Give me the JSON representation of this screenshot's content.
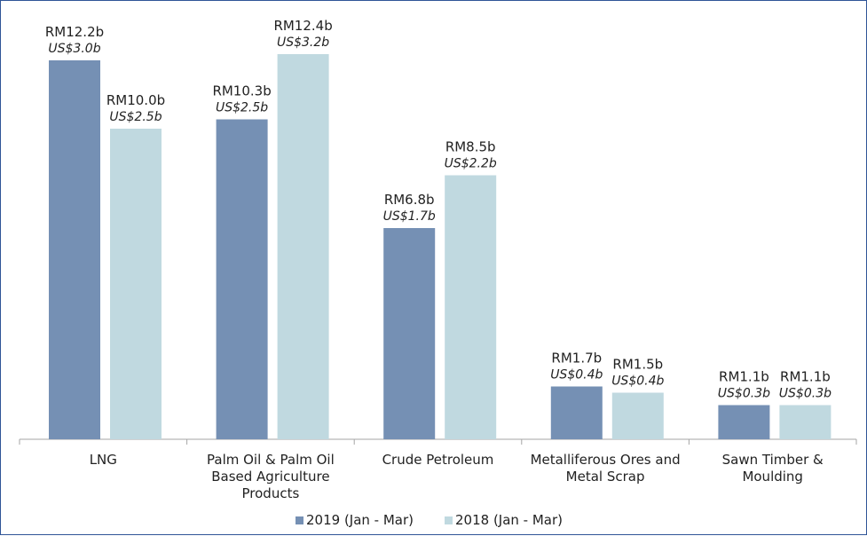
{
  "chart_data": {
    "type": "bar",
    "categories": [
      [
        "LNG"
      ],
      [
        "Palm Oil & Palm Oil",
        "Based Agriculture",
        "Products"
      ],
      [
        "Crude Petroleum"
      ],
      [
        "Metalliferous Ores and",
        "Metal Scrap"
      ],
      [
        "Sawn Timber &",
        "Moulding"
      ]
    ],
    "series": [
      {
        "name": "2019 (Jan - Mar)",
        "color": "#7590b4",
        "values": [
          12.2,
          10.3,
          6.8,
          1.7,
          1.1
        ],
        "labels_rm": [
          "RM12.2b",
          "RM10.3b",
          "RM6.8b",
          "RM1.7b",
          "RM1.1b"
        ],
        "labels_usd": [
          "US$3.0b",
          "US$2.5b",
          "US$1.7b",
          "US$0.4b",
          "US$0.3b"
        ]
      },
      {
        "name": "2018 (Jan - Mar)",
        "color": "#c0d9e0",
        "values": [
          10.0,
          12.4,
          8.5,
          1.5,
          1.1
        ],
        "labels_rm": [
          "RM10.0b",
          "RM12.4b",
          "RM8.5b",
          "RM1.5b",
          "RM1.1b"
        ],
        "labels_usd": [
          "US$2.5b",
          "US$3.2b",
          "US$2.2b",
          "US$0.4b",
          "US$0.3b"
        ]
      }
    ],
    "ylim": [
      0,
      12.4
    ],
    "grid": false,
    "legend_position": "bottom"
  }
}
